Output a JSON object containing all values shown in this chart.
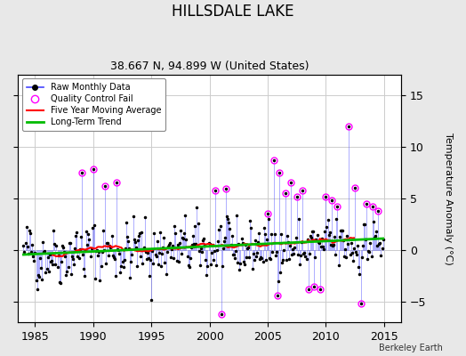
{
  "title": "HILLSDALE LAKE",
  "subtitle": "38.667 N, 94.899 W (United States)",
  "ylabel": "Temperature Anomaly (°C)",
  "watermark": "Berkeley Earth",
  "xlim": [
    1983.5,
    2016.5
  ],
  "ylim": [
    -7,
    17
  ],
  "yticks": [
    -5,
    0,
    5,
    10,
    15
  ],
  "xticks": [
    1985,
    1990,
    1995,
    2000,
    2005,
    2010,
    2015
  ],
  "bg_color": "#e8e8e8",
  "plot_bg_color": "#ffffff",
  "line_color": "#4444ff",
  "dot_color": "#000000",
  "qc_color": "#ff00ff",
  "moving_avg_color": "#ff0000",
  "trend_color": "#00bb00",
  "seed": 42,
  "figwidth": 5.24,
  "figheight": 4.0,
  "dpi": 100
}
